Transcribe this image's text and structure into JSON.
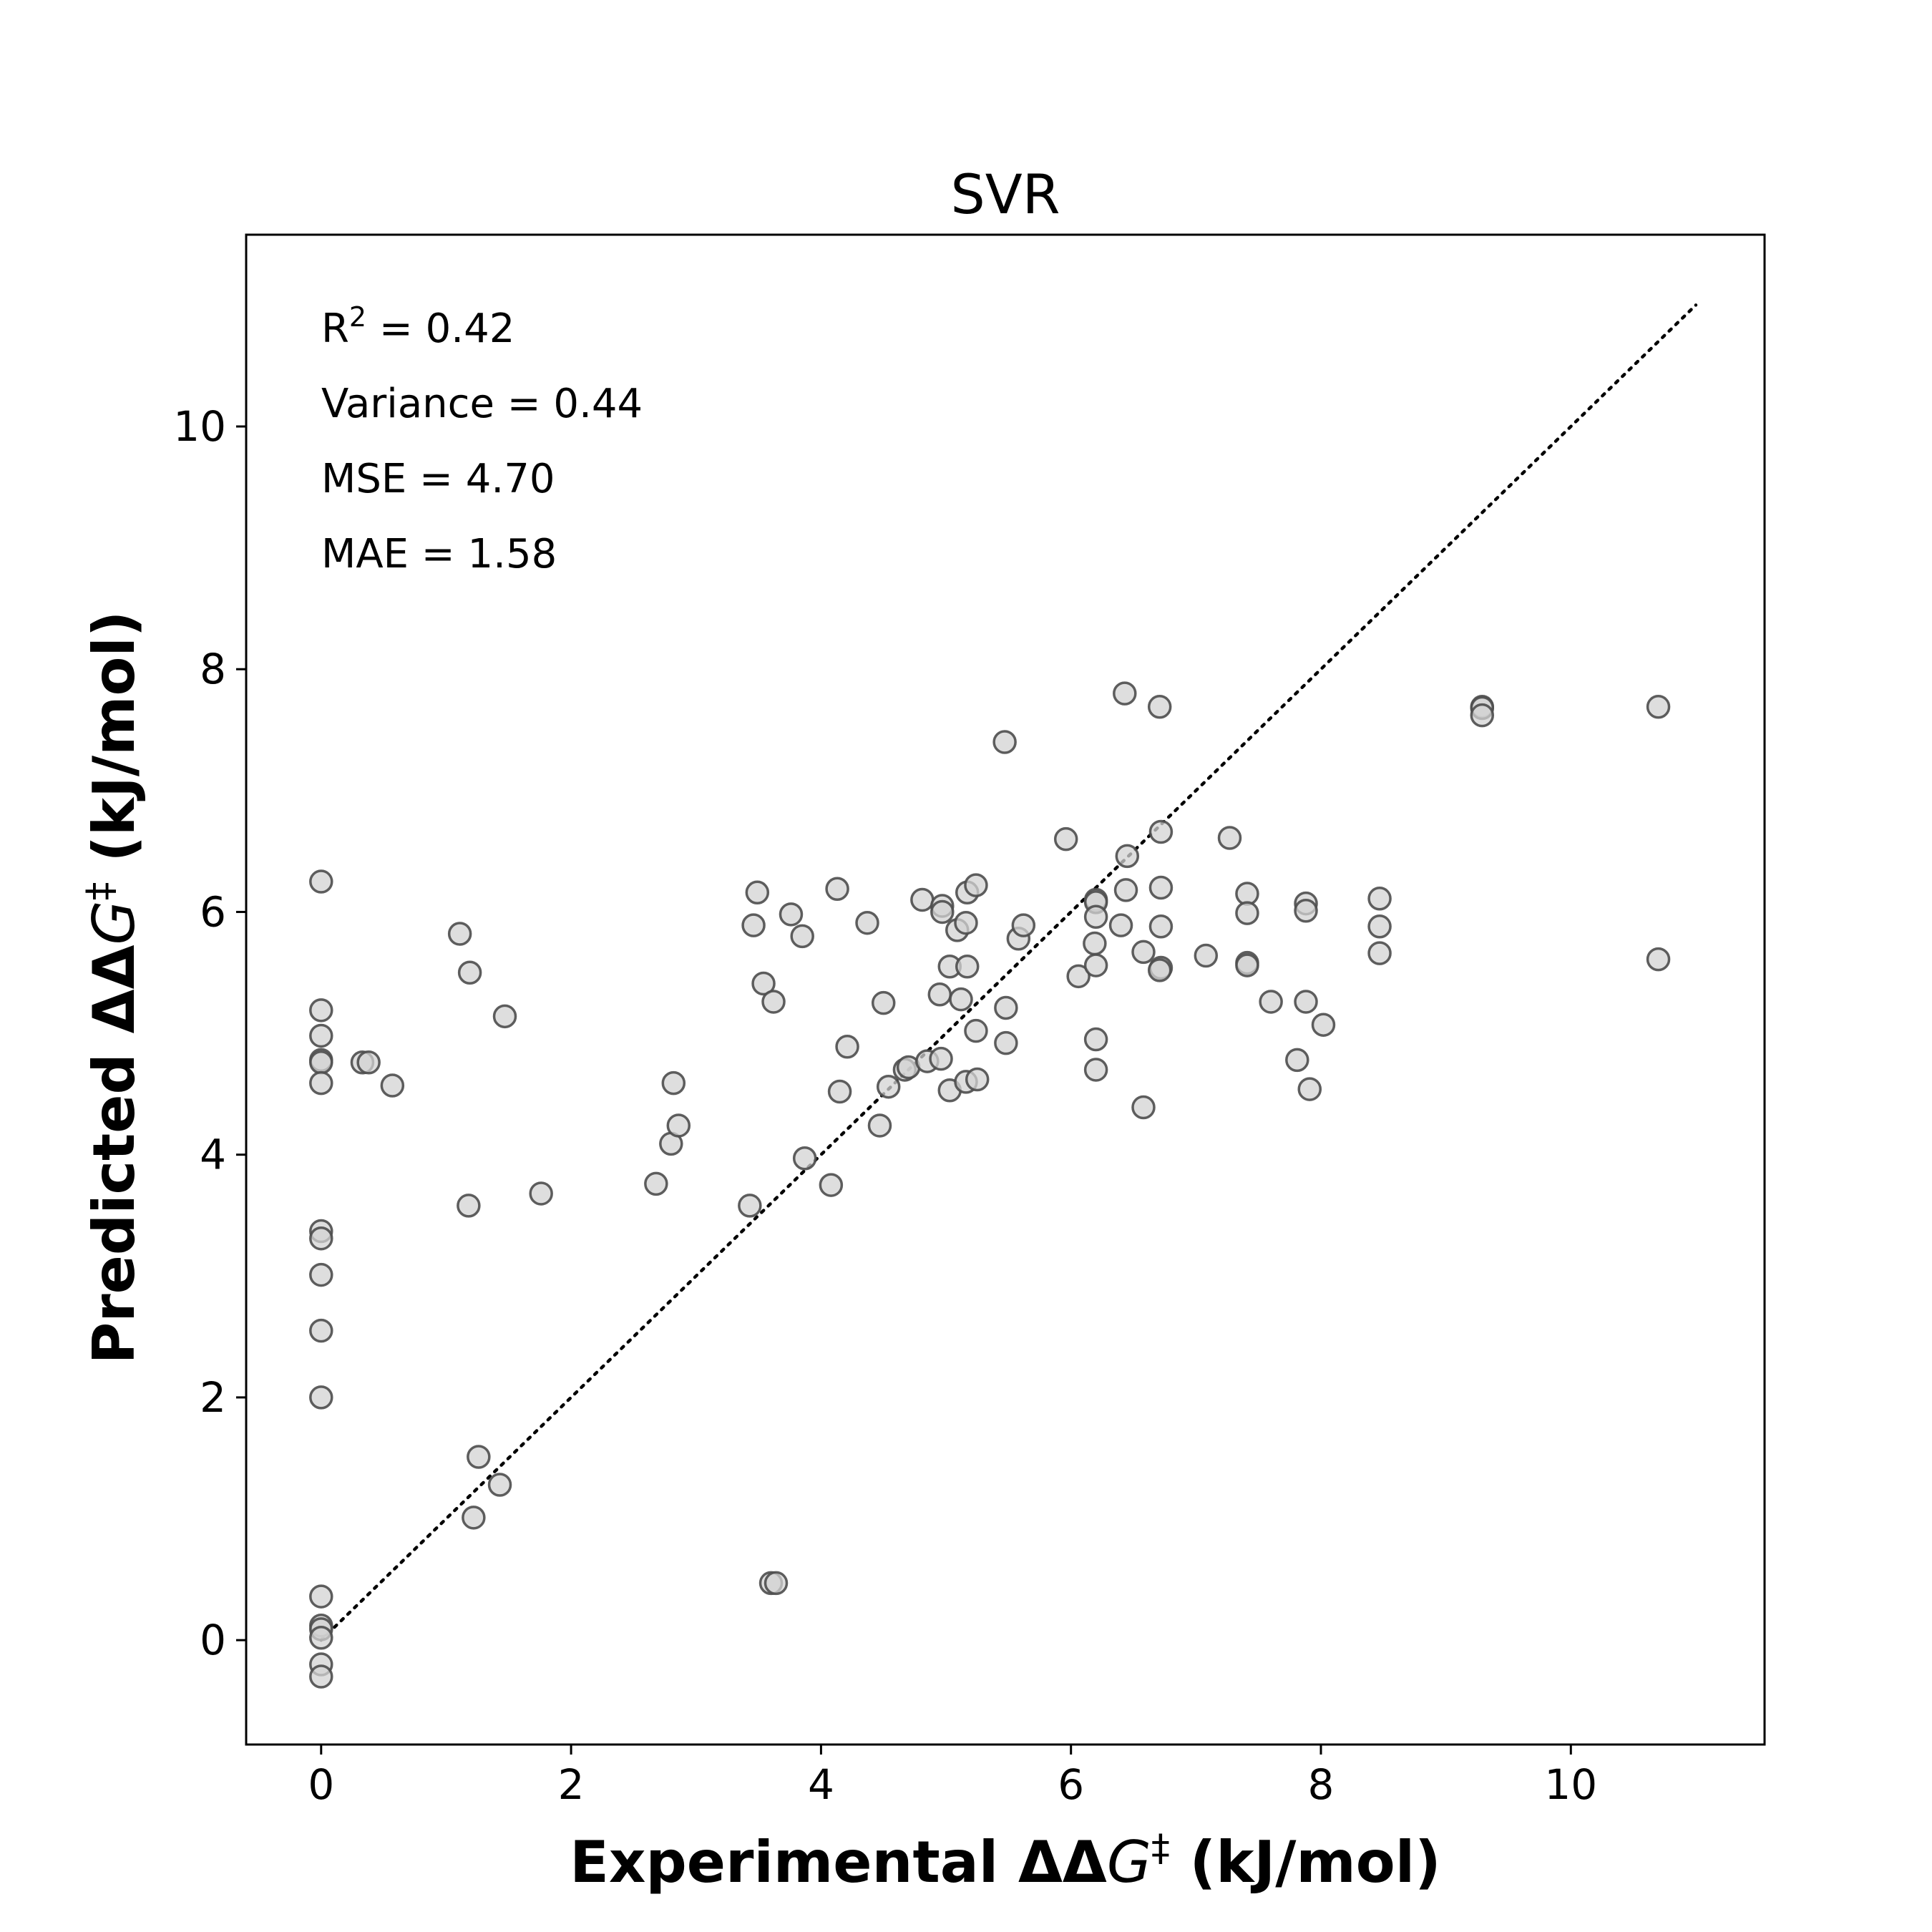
{
  "chart_data": {
    "type": "scatter",
    "title": "SVR",
    "xlabel": {
      "prefix": "Experimental ΔΔ",
      "symbol": "G",
      "sup": "‡",
      "suffix": " (kJ/mol)"
    },
    "ylabel": {
      "prefix": "Predicted ΔΔ",
      "symbol": "G",
      "sup": "‡",
      "suffix": " (kJ/mol)"
    },
    "xlim": [
      -0.6,
      11.55
    ],
    "ylim": [
      -0.86,
      11.58
    ],
    "xticks": [
      0,
      2,
      4,
      6,
      8,
      10
    ],
    "yticks": [
      0,
      2,
      4,
      6,
      8,
      10
    ],
    "grid": false,
    "marker": {
      "face_color": "#d3d3d3",
      "edge_color": "#4d4d4d",
      "opacity": 0.75
    },
    "identity_line": {
      "x": [
        0,
        11
      ],
      "y": [
        0,
        11
      ],
      "style": "dotted",
      "color": "#000000"
    },
    "annotations": [
      {
        "base": "R",
        "sup": "2",
        "text": " = 0.42"
      },
      {
        "base": "",
        "sup": "",
        "text": "Variance = 0.44"
      },
      {
        "base": "",
        "sup": "",
        "text": "MSE = 4.70"
      },
      {
        "base": "",
        "sup": "",
        "text": "MAE = 1.58"
      }
    ],
    "points": [
      [
        0,
        6.25
      ],
      [
        0,
        5.19
      ],
      [
        0,
        4.98
      ],
      [
        0,
        4.78
      ],
      [
        0,
        4.76
      ],
      [
        0,
        4.59
      ],
      [
        0,
        3.37
      ],
      [
        0,
        3.31
      ],
      [
        0,
        3.01
      ],
      [
        0,
        2.55
      ],
      [
        0,
        2.0
      ],
      [
        0,
        0.36
      ],
      [
        0,
        0.12
      ],
      [
        0,
        0.09
      ],
      [
        0,
        0.02
      ],
      [
        0,
        -0.2
      ],
      [
        0,
        -0.3
      ],
      [
        0.33,
        4.76
      ],
      [
        0.38,
        4.76
      ],
      [
        0.57,
        4.57
      ],
      [
        1.11,
        5.82
      ],
      [
        1.19,
        5.5
      ],
      [
        1.18,
        3.58
      ],
      [
        1.47,
        5.14
      ],
      [
        1.76,
        3.68
      ],
      [
        1.26,
        1.51
      ],
      [
        1.22,
        1.01
      ],
      [
        1.43,
        1.28
      ],
      [
        2.68,
        3.76
      ],
      [
        2.8,
        4.09
      ],
      [
        2.82,
        4.59
      ],
      [
        2.86,
        4.24
      ],
      [
        3.43,
        3.58
      ],
      [
        3.46,
        5.89
      ],
      [
        3.49,
        6.16
      ],
      [
        3.54,
        5.41
      ],
      [
        3.62,
        5.26
      ],
      [
        3.76,
        5.98
      ],
      [
        3.85,
        5.8
      ],
      [
        3.87,
        3.97
      ],
      [
        3.6,
        0.47
      ],
      [
        3.64,
        0.47
      ],
      [
        4.08,
        3.75
      ],
      [
        4.13,
        6.19
      ],
      [
        4.15,
        4.52
      ],
      [
        4.21,
        4.89
      ],
      [
        4.37,
        5.91
      ],
      [
        4.47,
        4.24
      ],
      [
        4.5,
        5.25
      ],
      [
        4.54,
        4.56
      ],
      [
        4.67,
        4.7
      ],
      [
        4.7,
        4.72
      ],
      [
        4.81,
        6.1
      ],
      [
        4.85,
        4.77
      ],
      [
        4.96,
        4.79
      ],
      [
        4.95,
        5.32
      ],
      [
        4.97,
        6.05
      ],
      [
        4.97,
        6.0
      ],
      [
        5.03,
        4.53
      ],
      [
        5.03,
        5.55
      ],
      [
        5.09,
        5.85
      ],
      [
        5.12,
        5.28
      ],
      [
        5.16,
        4.6
      ],
      [
        5.16,
        5.91
      ],
      [
        5.17,
        6.16
      ],
      [
        5.17,
        5.55
      ],
      [
        5.24,
        6.22
      ],
      [
        5.24,
        5.02
      ],
      [
        5.25,
        4.62
      ],
      [
        5.47,
        7.4
      ],
      [
        5.48,
        5.21
      ],
      [
        5.48,
        4.92
      ],
      [
        5.58,
        5.78
      ],
      [
        5.62,
        5.89
      ],
      [
        5.96,
        6.6
      ],
      [
        6.06,
        5.47
      ],
      [
        6.2,
        6.1
      ],
      [
        6.2,
        6.08
      ],
      [
        6.2,
        5.96
      ],
      [
        6.19,
        5.74
      ],
      [
        6.2,
        5.56
      ],
      [
        6.2,
        4.95
      ],
      [
        6.2,
        4.7
      ],
      [
        6.4,
        5.89
      ],
      [
        6.43,
        7.8
      ],
      [
        6.45,
        6.46
      ],
      [
        6.44,
        6.18
      ],
      [
        6.58,
        5.67
      ],
      [
        6.58,
        4.39
      ],
      [
        6.71,
        7.69
      ],
      [
        6.72,
        6.66
      ],
      [
        6.72,
        6.2
      ],
      [
        6.72,
        5.88
      ],
      [
        6.72,
        5.54
      ],
      [
        6.71,
        5.52
      ],
      [
        7.08,
        5.64
      ],
      [
        7.27,
        6.61
      ],
      [
        7.41,
        6.15
      ],
      [
        7.41,
        5.99
      ],
      [
        7.41,
        5.58
      ],
      [
        7.41,
        5.56
      ],
      [
        7.6,
        5.26
      ],
      [
        7.81,
        4.78
      ],
      [
        7.88,
        6.07
      ],
      [
        7.88,
        6.01
      ],
      [
        7.88,
        5.26
      ],
      [
        7.91,
        4.54
      ],
      [
        8.02,
        5.07
      ],
      [
        8.47,
        6.11
      ],
      [
        8.47,
        5.88
      ],
      [
        8.47,
        5.66
      ],
      [
        9.29,
        7.69
      ],
      [
        9.29,
        7.68
      ],
      [
        9.29,
        7.62
      ],
      [
        10.7,
        7.69
      ],
      [
        10.7,
        5.61
      ]
    ]
  }
}
